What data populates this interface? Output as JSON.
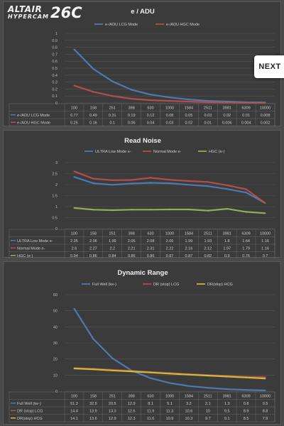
{
  "logo": {
    "brand": "ALTAIR",
    "line2": "HYPERCAM",
    "model": "26C"
  },
  "next_button": {
    "label": "NEXT"
  },
  "chart_data": [
    {
      "type": "line",
      "title": "e / ADU",
      "x": [
        "100",
        "158",
        "251",
        "398",
        "630",
        "1000",
        "1584",
        "2511",
        "3981",
        "6309",
        "10000"
      ],
      "ylim": [
        0,
        1
      ],
      "yticks": [
        0,
        0.1,
        0.2,
        0.3,
        0.4,
        0.5,
        0.6,
        0.7,
        0.8,
        0.9,
        1
      ],
      "legend": "top",
      "grid": true,
      "series": [
        {
          "name": "e-/ADU LCG Mode",
          "color": "#4f81bd",
          "labels": [
            "0.77",
            "0.49",
            "0.31",
            "0.19",
            "0.12",
            "0.08",
            "0.05",
            "0.03",
            "0.02",
            "0.01",
            "0.008"
          ],
          "values": [
            0.77,
            0.49,
            0.31,
            0.19,
            0.12,
            0.08,
            0.05,
            0.03,
            0.02,
            0.01,
            0.008
          ]
        },
        {
          "name": "e-/ADU HGC Mode",
          "color": "#c0504d",
          "labels": [
            "0.25",
            "0.16",
            "0.1",
            "0.06",
            "0.04",
            "0.03",
            "0.02",
            "0.01",
            "0.006",
            "0.004",
            "0.002"
          ],
          "values": [
            0.25,
            0.16,
            0.1,
            0.06,
            0.04,
            0.03,
            0.02,
            0.01,
            0.006,
            0.004,
            0.002
          ]
        }
      ]
    },
    {
      "type": "line",
      "title": "Read Noise",
      "x": [
        "100",
        "158",
        "251",
        "398",
        "630",
        "1000",
        "1584",
        "2511",
        "3981",
        "6309",
        "10000"
      ],
      "ylim": [
        0,
        3
      ],
      "yticks": [
        0,
        0.5,
        1,
        1.5,
        2,
        2.5,
        3
      ],
      "legend": "top",
      "grid": true,
      "series": [
        {
          "name": "ULTRA Low Mode e-",
          "color": "#4f81bd",
          "labels": [
            "2.35",
            "2.06",
            "1.99",
            "2.05",
            "2.08",
            "2.06",
            "1.99",
            "1.93",
            "1.8",
            "1.64",
            "1.16"
          ],
          "values": [
            2.35,
            2.06,
            1.99,
            2.05,
            2.08,
            2.06,
            1.99,
            1.93,
            1.8,
            1.64,
            1.16
          ]
        },
        {
          "name": "Normal Mode e-",
          "color": "#c0504d",
          "labels": [
            "2.6",
            "2.27",
            "2.2",
            "2.21",
            "2.31",
            "2.22",
            "2.16",
            "2.12",
            "1.97",
            "1.79",
            "1.16"
          ],
          "values": [
            2.6,
            2.27,
            2.2,
            2.21,
            2.31,
            2.22,
            2.16,
            2.12,
            1.97,
            1.79,
            1.16
          ]
        },
        {
          "name": "HGC (e-)",
          "color": "#9bbb59",
          "labels": [
            "0.94",
            "0.86",
            "0.84",
            "0.86",
            "0.86",
            "0.87",
            "0.87",
            "0.82",
            "0.9",
            "0.76",
            "0.7"
          ],
          "values": [
            0.94,
            0.86,
            0.84,
            0.86,
            0.86,
            0.87,
            0.87,
            0.82,
            0.9,
            0.76,
            0.7
          ]
        }
      ]
    },
    {
      "type": "line",
      "title": "Dynamic Range",
      "x": [
        "100",
        "158",
        "251",
        "398",
        "630",
        "1000",
        "1584",
        "2511",
        "3981",
        "6309",
        "10000"
      ],
      "ylim": [
        0,
        60
      ],
      "yticks": [
        0,
        10,
        20,
        30,
        40,
        50,
        60
      ],
      "legend": "top",
      "grid": true,
      "series": [
        {
          "name": "Full Well (ke-)",
          "color": "#4f81bd",
          "labels": [
            "51.3",
            "32.5",
            "20.5",
            "12.9",
            "8.1",
            "5.1",
            "3.2",
            "2.1",
            "1.3",
            "0.8",
            "0.5"
          ],
          "values": [
            51.3,
            32.5,
            20.5,
            12.9,
            8.1,
            5.1,
            3.2,
            2.1,
            1.3,
            0.8,
            0.5
          ]
        },
        {
          "name": "DR (stop) LCG",
          "color": "#c0504d",
          "labels": [
            "14.4",
            "13.9",
            "13.3",
            "12.6",
            "11.9",
            "11.3",
            "10.6",
            "10",
            "9.5",
            "8.9",
            "8.8"
          ],
          "values": [
            14.4,
            13.9,
            13.3,
            12.6,
            11.9,
            11.3,
            10.6,
            10,
            9.5,
            8.9,
            8.8
          ]
        },
        {
          "name": "DR(stop) HCG",
          "color": "#d9c33a",
          "labels": [
            "14.1",
            "13.6",
            "12.9",
            "12.3",
            "11.6",
            "10.9",
            "10.3",
            "9.7",
            "9.1",
            "8.5",
            "7.9"
          ],
          "values": [
            14.1,
            13.6,
            12.9,
            12.3,
            11.6,
            10.9,
            10.3,
            9.7,
            9.1,
            8.5,
            7.9
          ]
        }
      ]
    }
  ]
}
